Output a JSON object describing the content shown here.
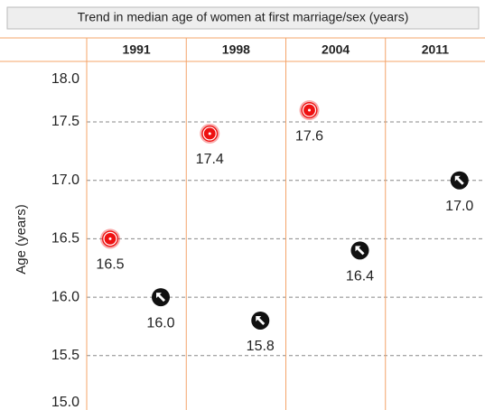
{
  "chart_data": {
    "type": "scatter",
    "title": "Trend in median age of women at first marriage/sex (years)",
    "categories": [
      "1991",
      "1998",
      "2004",
      "2011"
    ],
    "y_label": "Age (years)",
    "ylim": [
      15,
      18
    ],
    "yticks": [
      {
        "value": 15,
        "label": "15.0"
      },
      {
        "value": 15.5,
        "label": "15.5"
      },
      {
        "value": 16,
        "label": "16.0"
      },
      {
        "value": 16.5,
        "label": "16.5"
      },
      {
        "value": 17,
        "label": "17.0"
      },
      {
        "value": 17.5,
        "label": "17.5"
      },
      {
        "value": 18,
        "label": "18.0"
      }
    ],
    "grid": true,
    "series": [
      {
        "color": "#ee1111",
        "marker": "target",
        "values": [
          16.5,
          17.4,
          17.6,
          null
        ],
        "value_labels": [
          "16.5",
          "17.4",
          "17.6",
          null
        ]
      },
      {
        "color": "#111111",
        "marker": "arrow",
        "values": [
          16.0,
          15.8,
          16.4,
          17.0
        ],
        "value_labels": [
          "16.0",
          "15.8",
          "16.4",
          "17.0"
        ]
      }
    ]
  }
}
